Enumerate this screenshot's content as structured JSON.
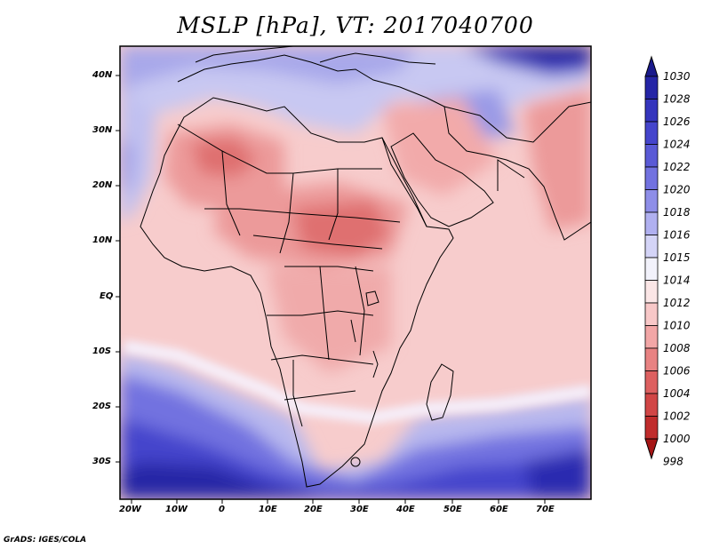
{
  "title": "MSLP [hPa], VT: 2017040700",
  "credit": "GrADS: IGES/COLA",
  "map": {
    "lon_labels": [
      "20W",
      "10W",
      "0",
      "10E",
      "20E",
      "30E",
      "40E",
      "50E",
      "60E",
      "70E"
    ],
    "lat_labels": [
      "40N",
      "30N",
      "20N",
      "10N",
      "EQ",
      "10S",
      "20S",
      "30S"
    ],
    "lon_values": [
      -20,
      -10,
      0,
      10,
      20,
      30,
      40,
      50,
      60,
      70
    ],
    "lat_values": [
      40,
      30,
      20,
      10,
      0,
      -10,
      -20,
      -30
    ]
  },
  "colorbar": {
    "levels": [
      "1030",
      "1028",
      "1026",
      "1024",
      "1022",
      "1020",
      "1018",
      "1016",
      "1015",
      "1014",
      "1012",
      "1010",
      "1008",
      "1006",
      "1004",
      "1002",
      "1000",
      "998"
    ],
    "colors": [
      "#1a1a8c",
      "#2525a6",
      "#3535bd",
      "#4545cc",
      "#5a5ad6",
      "#7272e0",
      "#8e8ee8",
      "#b0b0f0",
      "#d4d4f7",
      "#f2f2fb",
      "#fbe6e6",
      "#f8c8c8",
      "#f2a6a6",
      "#e88282",
      "#dd6060",
      "#d14646",
      "#c02c2c",
      "#a51515"
    ]
  }
}
